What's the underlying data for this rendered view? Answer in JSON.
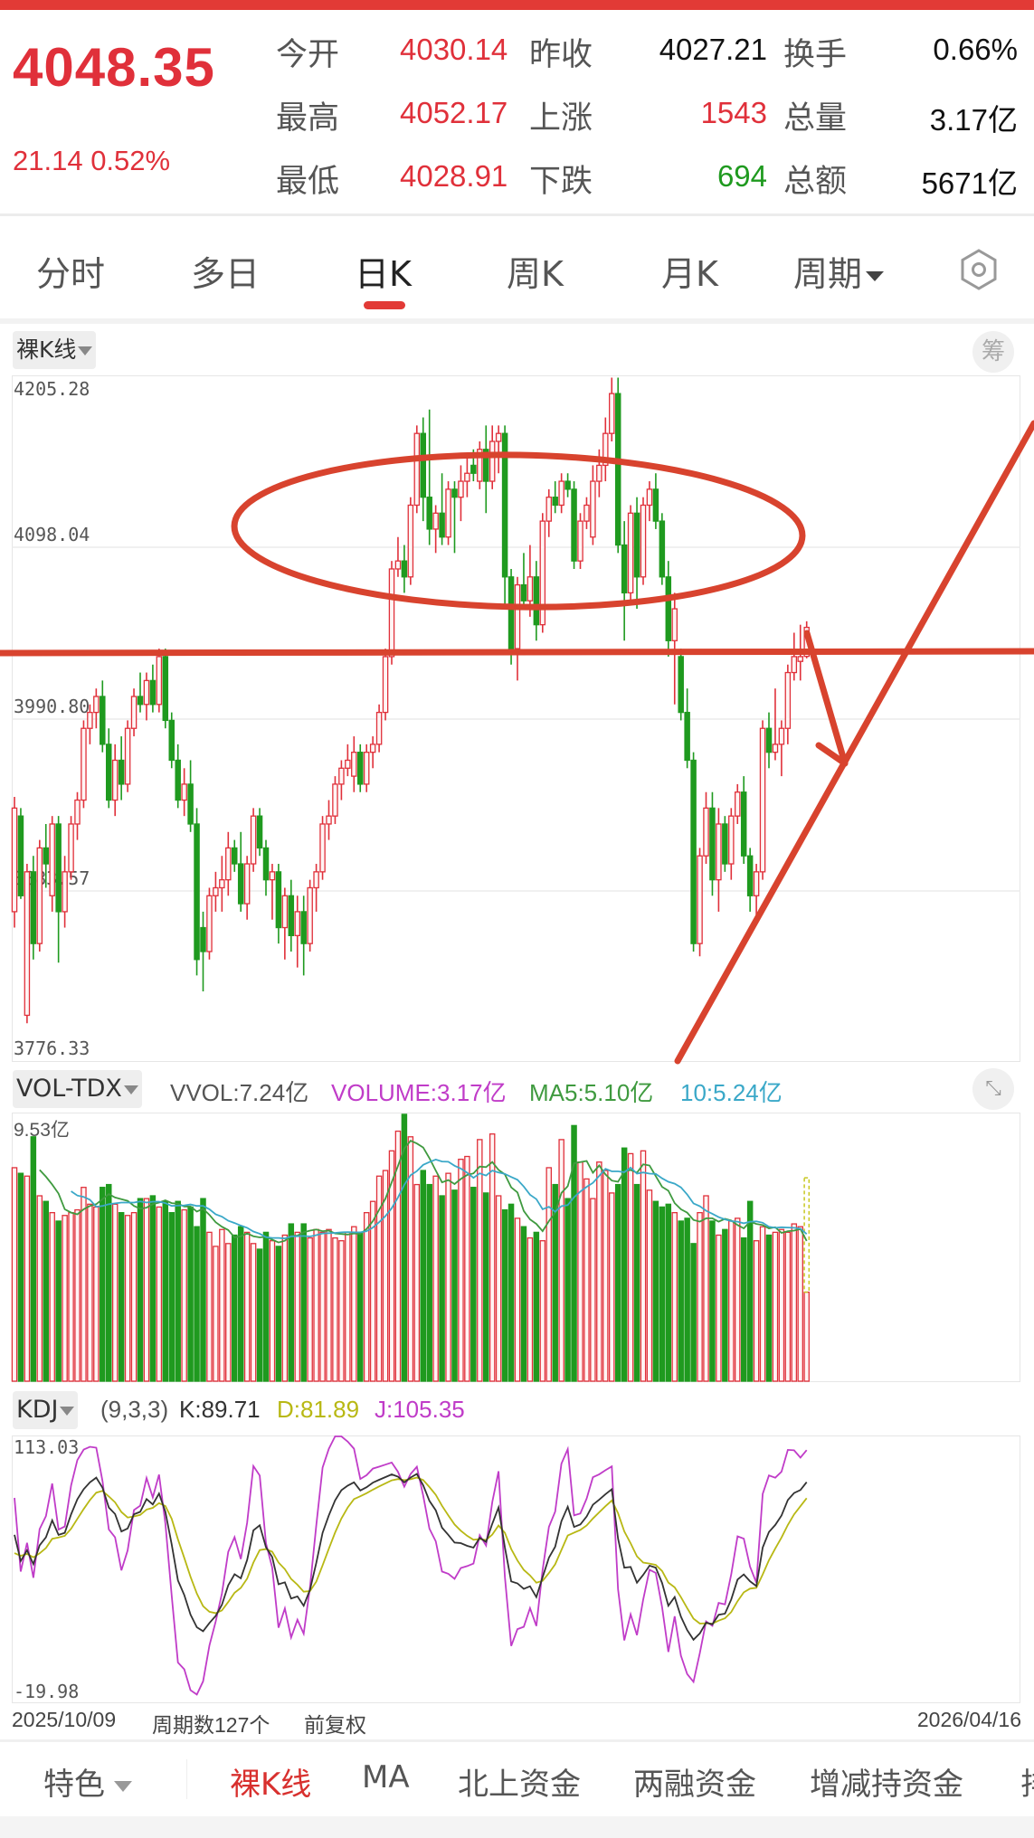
{
  "quote": {
    "price": "4048.35",
    "change": "21.14 0.52%",
    "stats": [
      {
        "label": "今开",
        "value": "4030.14",
        "color": "red"
      },
      {
        "label": "最高",
        "value": "4052.17",
        "color": "red"
      },
      {
        "label": "最低",
        "value": "4028.91",
        "color": "red"
      },
      {
        "label": "昨收",
        "value": "4027.21",
        "color": "black"
      },
      {
        "label": "上涨",
        "value": "1543",
        "color": "red"
      },
      {
        "label": "下跌",
        "value": "694",
        "color": "green"
      },
      {
        "label": "换手",
        "value": "0.66%",
        "color": "black"
      },
      {
        "label": "总量",
        "value": "3.17亿",
        "color": "black"
      },
      {
        "label": "总额",
        "value": "5671亿",
        "color": "black"
      }
    ]
  },
  "period_tabs": {
    "items": [
      "分时",
      "多日",
      "日K",
      "周K",
      "月K",
      "周期"
    ],
    "active": "日K",
    "settings_icon": "hexagon-settings-icon"
  },
  "main_chart": {
    "indicator_select": "裸K线",
    "chip_button": "筹",
    "y_labels": [
      "4205.28",
      "4098.04",
      "3990.80",
      "3883.57",
      "3776.33"
    ]
  },
  "volume_panel": {
    "indicator_select": "VOL-TDX",
    "vvol": "VVOL:7.24亿",
    "volume": "VOLUME:3.17亿",
    "ma5": "MA5:5.10亿",
    "ma10": "10:5.24亿",
    "y_label": "9.53亿",
    "expand_icon": "expand-arrows-icon"
  },
  "kdj_panel": {
    "indicator_select": "KDJ",
    "params": "(9,3,3)",
    "k": "K:89.71",
    "d": "D:81.89",
    "j": "J:105.35",
    "y_top": "113.03",
    "y_bottom": "-19.98"
  },
  "footer": {
    "start_date": "2025/10/09",
    "period_count": "周期数127个",
    "adjust": "前复权",
    "end_date": "2026/04/16"
  },
  "bottom_tabs": {
    "feature": "特色",
    "items": [
      "裸K线",
      "MA",
      "北上资金",
      "两融资金",
      "增减持资金",
      "排"
    ],
    "active": "裸K线"
  },
  "colors": {
    "up": "#e0303a",
    "down": "#1f9a1f",
    "kdj_k": "#333333",
    "kdj_d": "#b8b814",
    "kdj_j": "#c03cc8",
    "vol_ma5": "#3f9a3f",
    "vol_ma10": "#3aa8c8",
    "annotation": "#d8432e"
  },
  "chart_data": [
    {
      "type": "candlestick",
      "title": "",
      "ylim": [
        3776.33,
        4205.28
      ],
      "x_range": [
        "2025/10/09",
        "2026/04/16"
      ],
      "ohlc": [
        [
          3870,
          3942,
          3860,
          3935
        ],
        [
          3930,
          3935,
          3878,
          3880
        ],
        [
          3805,
          3900,
          3800,
          3895
        ],
        [
          3895,
          3905,
          3840,
          3850
        ],
        [
          3850,
          3915,
          3845,
          3910
        ],
        [
          3910,
          3925,
          3885,
          3900
        ],
        [
          3880,
          3930,
          3870,
          3925
        ],
        [
          3925,
          3930,
          3838,
          3870
        ],
        [
          3870,
          3905,
          3860,
          3895
        ],
        [
          3895,
          3930,
          3890,
          3925
        ],
        [
          3925,
          3945,
          3915,
          3940
        ],
        [
          3940,
          3990,
          3935,
          3985
        ],
        [
          3985,
          4000,
          3975,
          3995
        ],
        [
          3995,
          4010,
          3985,
          4005
        ],
        [
          4005,
          4015,
          3970,
          3975
        ],
        [
          3975,
          3985,
          3935,
          3940
        ],
        [
          3940,
          3975,
          3930,
          3965
        ],
        [
          3965,
          3980,
          3940,
          3950
        ],
        [
          3950,
          3990,
          3945,
          3985
        ],
        [
          3985,
          4010,
          3980,
          4005
        ],
        [
          4005,
          4020,
          3995,
          4000
        ],
        [
          4000,
          4020,
          3990,
          4015
        ],
        [
          4015,
          4025,
          3995,
          4000
        ],
        [
          4000,
          4035,
          3995,
          4030
        ],
        [
          4030,
          4035,
          3985,
          3990
        ],
        [
          3990,
          3995,
          3960,
          3965
        ],
        [
          3965,
          3975,
          3935,
          3940
        ],
        [
          3940,
          3960,
          3930,
          3950
        ],
        [
          3950,
          3965,
          3920,
          3925
        ],
        [
          3925,
          3935,
          3830,
          3840
        ],
        [
          3860,
          3870,
          3820,
          3845
        ],
        [
          3845,
          3885,
          3840,
          3880
        ],
        [
          3880,
          3895,
          3870,
          3885
        ],
        [
          3885,
          3905,
          3870,
          3890
        ],
        [
          3890,
          3920,
          3880,
          3910
        ],
        [
          3910,
          3915,
          3895,
          3900
        ],
        [
          3900,
          3920,
          3870,
          3875
        ],
        [
          3875,
          3905,
          3865,
          3900
        ],
        [
          3900,
          3935,
          3895,
          3930
        ],
        [
          3930,
          3935,
          3905,
          3910
        ],
        [
          3910,
          3915,
          3880,
          3890
        ],
        [
          3890,
          3900,
          3865,
          3895
        ],
        [
          3895,
          3900,
          3850,
          3860
        ],
        [
          3860,
          3885,
          3840,
          3880
        ],
        [
          3880,
          3890,
          3845,
          3855
        ],
        [
          3855,
          3880,
          3835,
          3870
        ],
        [
          3870,
          3880,
          3830,
          3850
        ],
        [
          3850,
          3890,
          3845,
          3885
        ],
        [
          3885,
          3900,
          3870,
          3895
        ],
        [
          3895,
          3930,
          3890,
          3925
        ],
        [
          3925,
          3940,
          3915,
          3930
        ],
        [
          3930,
          3955,
          3925,
          3950
        ],
        [
          3950,
          3965,
          3940,
          3960
        ],
        [
          3960,
          3975,
          3955,
          3965
        ],
        [
          3955,
          3980,
          3945,
          3970
        ],
        [
          3970,
          3975,
          3945,
          3950
        ],
        [
          3950,
          3975,
          3945,
          3970
        ],
        [
          3970,
          3980,
          3960,
          3975
        ],
        [
          3975,
          4000,
          3970,
          3995
        ],
        [
          3995,
          4035,
          3990,
          4030
        ],
        [
          4030,
          4090,
          4025,
          4085
        ],
        [
          4085,
          4105,
          4080,
          4090
        ],
        [
          4090,
          4100,
          4070,
          4080
        ],
        [
          4080,
          4130,
          4075,
          4125
        ],
        [
          4125,
          4175,
          4120,
          4170
        ],
        [
          4170,
          4180,
          4115,
          4130
        ],
        [
          4130,
          4185,
          4100,
          4110
        ],
        [
          4110,
          4125,
          4095,
          4120
        ],
        [
          4120,
          4145,
          4100,
          4105
        ],
        [
          4105,
          4140,
          4100,
          4135
        ],
        [
          4135,
          4140,
          4095,
          4130
        ],
        [
          4130,
          4150,
          4115,
          4140
        ],
        [
          4140,
          4155,
          4130,
          4145
        ],
        [
          4150,
          4160,
          4140,
          4145
        ],
        [
          4140,
          4165,
          4135,
          4160
        ],
        [
          4160,
          4175,
          4120,
          4140
        ],
        [
          4140,
          4175,
          4135,
          4165
        ],
        [
          4165,
          4175,
          4145,
          4170
        ],
        [
          4170,
          4175,
          4060,
          4080
        ],
        [
          4080,
          4085,
          4025,
          4035
        ],
        [
          4035,
          4080,
          4015,
          4075
        ],
        [
          4075,
          4095,
          4060,
          4065
        ],
        [
          4065,
          4100,
          4055,
          4080
        ],
        [
          4080,
          4090,
          4040,
          4050
        ],
        [
          4050,
          4120,
          4045,
          4115
        ],
        [
          4115,
          4135,
          4105,
          4130
        ],
        [
          4130,
          4140,
          4120,
          4125
        ],
        [
          4125,
          4145,
          4120,
          4140
        ],
        [
          4140,
          4145,
          4130,
          4135
        ],
        [
          4135,
          4140,
          4085,
          4090
        ],
        [
          4090,
          4120,
          4085,
          4115
        ],
        [
          4115,
          4130,
          4110,
          4125
        ],
        [
          4105,
          4150,
          4100,
          4140
        ],
        [
          4140,
          4160,
          4130,
          4150
        ],
        [
          4150,
          4180,
          4140,
          4170
        ],
        [
          4170,
          4205,
          4165,
          4195
        ],
        [
          4195,
          4205,
          4095,
          4100
        ],
        [
          4100,
          4115,
          4040,
          4070
        ],
        [
          4070,
          4125,
          4065,
          4120
        ],
        [
          4120,
          4130,
          4060,
          4080
        ],
        [
          4080,
          4130,
          4075,
          4125
        ],
        [
          4125,
          4140,
          4115,
          4135
        ],
        [
          4135,
          4145,
          4110,
          4115
        ],
        [
          4115,
          4120,
          4075,
          4080
        ],
        [
          4080,
          4090,
          4030,
          4040
        ],
        [
          4040,
          4070,
          4000,
          4060
        ],
        [
          4030,
          4035,
          3990,
          3995
        ],
        [
          3995,
          4010,
          3960,
          3965
        ],
        [
          3965,
          3970,
          3845,
          3850
        ],
        [
          3850,
          3910,
          3842,
          3905
        ],
        [
          3905,
          3945,
          3900,
          3935
        ],
        [
          3935,
          3945,
          3880,
          3890
        ],
        [
          3890,
          3935,
          3870,
          3925
        ],
        [
          3925,
          3930,
          3895,
          3900
        ],
        [
          3900,
          3935,
          3890,
          3930
        ],
        [
          3930,
          3950,
          3925,
          3945
        ],
        [
          3945,
          3955,
          3900,
          3905
        ],
        [
          3905,
          3910,
          3870,
          3880
        ],
        [
          3880,
          3900,
          3865,
          3895
        ],
        [
          3895,
          3990,
          3890,
          3985
        ],
        [
          3985,
          3995,
          3960,
          3970
        ],
        [
          3970,
          4010,
          3965,
          3975
        ],
        [
          3975,
          3990,
          3955,
          3985
        ],
        [
          3985,
          4025,
          3975,
          4020
        ],
        [
          4020,
          4045,
          4015,
          4030
        ],
        [
          4027,
          4050,
          4015,
          4030
        ],
        [
          4030.14,
          4052.17,
          4028.91,
          4048.35
        ]
      ]
    },
    {
      "type": "bar",
      "title": "",
      "unit": "亿",
      "ylim": [
        0,
        9.53
      ],
      "values": [
        7.6,
        7.4,
        7.3,
        8.7,
        6.6,
        6.4,
        6.0,
        5.7,
        5.9,
        6.0,
        6.1,
        6.9,
        6.3,
        6.2,
        6.9,
        7.0,
        6.3,
        6.0,
        5.9,
        6.0,
        6.5,
        6.5,
        6.6,
        6.2,
        6.4,
        6.0,
        6.4,
        6.1,
        6.2,
        5.5,
        6.5,
        5.3,
        4.8,
        5.4,
        4.9,
        5.2,
        5.5,
        5.3,
        4.9,
        4.7,
        5.3,
        5.0,
        4.8,
        5.2,
        5.6,
        5.3,
        5.6,
        5.1,
        5.4,
        5.3,
        5.4,
        5.1,
        5.0,
        5.3,
        5.5,
        5.3,
        6.0,
        6.4,
        7.3,
        7.5,
        8.2,
        8.9,
        9.5,
        8.7,
        7.0,
        7.5,
        7.0,
        7.3,
        6.6,
        7.4,
        6.8,
        7.9,
        8.0,
        6.9,
        8.6,
        6.7,
        8.8,
        6.6,
        6.1,
        6.3,
        5.8,
        5.5,
        5.1,
        5.3,
        5.0,
        7.6,
        7.0,
        8.6,
        6.5,
        9.1,
        7.8,
        7.2,
        6.5,
        7.8,
        7.5,
        6.7,
        7.0,
        8.3,
        8.1,
        7.0,
        8.2,
        6.8,
        6.4,
        6.2,
        6.3,
        6.0,
        5.7,
        5.8,
        4.9,
        6.0,
        6.6,
        5.7,
        5.2,
        5.4,
        5.7,
        5.8,
        5.1,
        6.4,
        5.0,
        5.5,
        5.2,
        5.3,
        5.4,
        5.3,
        5.6,
        5.5,
        3.17
      ],
      "projected_last": 7.24
    },
    {
      "type": "line",
      "title": "",
      "indicator": "KDJ(9,3,3)",
      "ylim": [
        -19.98,
        113.03
      ],
      "last": {
        "K": 89.71,
        "D": 81.89,
        "J": 105.35
      }
    }
  ]
}
